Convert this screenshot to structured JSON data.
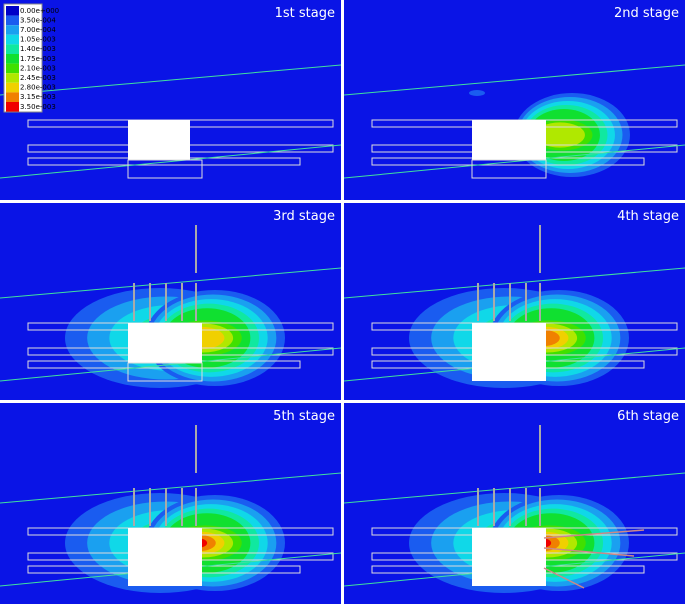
{
  "legend": {
    "labels": [
      "0.00e+000",
      "3.50e-004",
      "7.00e-004",
      "1.05e-003",
      "1.40e-003",
      "1.75e-003",
      "2.10e-003",
      "2.45e-003",
      "2.80e-003",
      "3.15e-003",
      "3.50e-003"
    ],
    "colors": [
      "#0000c8",
      "#1a5cf0",
      "#1aa0f0",
      "#10d8e8",
      "#10e8a0",
      "#10e030",
      "#40e000",
      "#b0e800",
      "#f0d000",
      "#f08000",
      "#f00000"
    ]
  },
  "panels": [
    {
      "title": "1st stage"
    },
    {
      "title": "2nd stage"
    },
    {
      "title": "3rd stage"
    },
    {
      "title": "4th stage"
    },
    {
      "title": "5th stage"
    },
    {
      "title": "6th stage"
    }
  ]
}
